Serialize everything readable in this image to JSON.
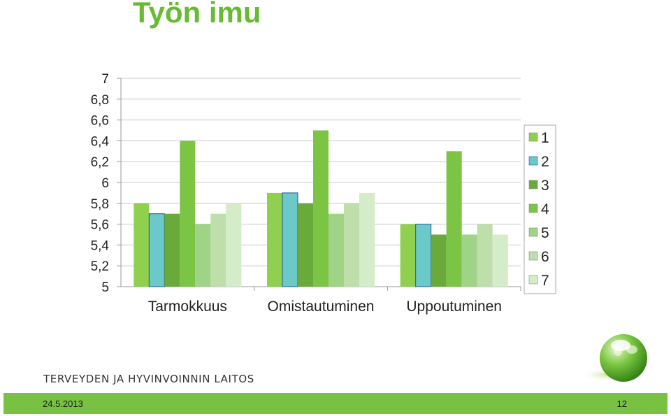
{
  "title": "Työn imu",
  "organization": "TERVEYDEN JA HYVINVOINNIN LAITOS",
  "footer": {
    "date": "24.5.2013",
    "page": "12"
  },
  "colors": {
    "title": "#66bb33",
    "footer_bar": "#79c142",
    "series": [
      "#8fd14f",
      "#6cc9c9",
      "#6aaa3a",
      "#7cc444",
      "#9fd386",
      "#bedeaa",
      "#d5ecc8"
    ]
  },
  "logo_icon": "green-sphere-logo-icon",
  "chart_data": {
    "type": "bar",
    "categories": [
      "Tarmokkuus",
      "Omistautuminen",
      "Uppoutuminen"
    ],
    "series": [
      {
        "name": "1",
        "values": [
          5.8,
          5.9,
          5.6
        ]
      },
      {
        "name": "2",
        "values": [
          5.7,
          5.9,
          5.6
        ]
      },
      {
        "name": "3",
        "values": [
          5.7,
          5.8,
          5.5
        ]
      },
      {
        "name": "4",
        "values": [
          6.4,
          6.5,
          6.3
        ]
      },
      {
        "name": "5",
        "values": [
          5.6,
          5.7,
          5.5
        ]
      },
      {
        "name": "6",
        "values": [
          5.7,
          5.8,
          5.6
        ]
      },
      {
        "name": "7",
        "values": [
          5.8,
          5.9,
          5.5
        ]
      }
    ],
    "yticks": [
      "5",
      "5,2",
      "5,4",
      "5,6",
      "5,8",
      "6",
      "6,2",
      "6,4",
      "6,6",
      "6,8",
      "7"
    ],
    "ylim": [
      5,
      7
    ],
    "grid": true,
    "legend": "right"
  }
}
